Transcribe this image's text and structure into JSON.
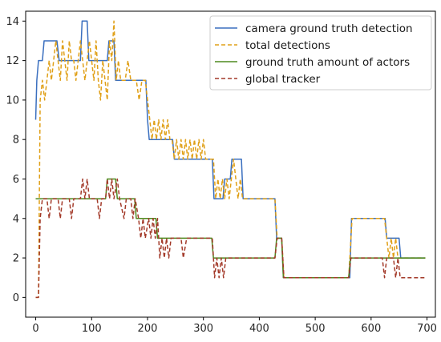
{
  "chart_data": {
    "type": "line",
    "title": "",
    "xlabel": "",
    "ylabel": "",
    "xlim": [
      -18,
      715
    ],
    "ylim": [
      -1,
      14.5
    ],
    "x_ticks": [
      0,
      100,
      200,
      300,
      400,
      500,
      600,
      700
    ],
    "y_ticks": [
      0,
      2,
      4,
      6,
      8,
      10,
      12,
      14
    ],
    "grid": false,
    "legend_position": "upper right",
    "series": [
      {
        "name": "camera ground truth detection",
        "color": "#3a6fbf",
        "style": "solid",
        "points": [
          [
            0,
            9
          ],
          [
            2,
            11
          ],
          [
            5,
            12
          ],
          [
            12,
            12
          ],
          [
            15,
            13
          ],
          [
            38,
            13
          ],
          [
            42,
            12
          ],
          [
            80,
            12
          ],
          [
            83,
            14
          ],
          [
            92,
            14
          ],
          [
            95,
            12
          ],
          [
            128,
            12
          ],
          [
            131,
            13
          ],
          [
            140,
            13
          ],
          [
            143,
            11
          ],
          [
            197,
            11
          ],
          [
            200,
            9
          ],
          [
            203,
            8
          ],
          [
            220,
            8
          ],
          [
            223,
            8
          ],
          [
            245,
            8
          ],
          [
            248,
            7
          ],
          [
            316,
            7
          ],
          [
            319,
            5
          ],
          [
            335,
            5
          ],
          [
            338,
            6
          ],
          [
            348,
            6
          ],
          [
            351,
            7
          ],
          [
            368,
            7
          ],
          [
            371,
            5
          ],
          [
            428,
            5
          ],
          [
            431,
            3
          ],
          [
            440,
            3
          ],
          [
            443,
            1
          ],
          [
            562,
            1
          ],
          [
            565,
            4
          ],
          [
            625,
            4
          ],
          [
            628,
            3
          ],
          [
            650,
            3
          ],
          [
            653,
            2
          ],
          [
            697,
            2
          ]
        ]
      },
      {
        "name": "total detections",
        "color": "#e0a018",
        "style": "dashed",
        "points": [
          [
            0,
            0
          ],
          [
            5,
            0
          ],
          [
            8,
            10
          ],
          [
            12,
            11
          ],
          [
            16,
            10
          ],
          [
            20,
            11
          ],
          [
            24,
            12
          ],
          [
            28,
            11
          ],
          [
            32,
            12
          ],
          [
            36,
            13
          ],
          [
            40,
            12
          ],
          [
            44,
            11
          ],
          [
            48,
            13
          ],
          [
            52,
            12
          ],
          [
            56,
            11
          ],
          [
            60,
            13
          ],
          [
            64,
            12
          ],
          [
            68,
            12
          ],
          [
            72,
            11
          ],
          [
            76,
            12
          ],
          [
            80,
            13
          ],
          [
            84,
            12
          ],
          [
            88,
            11
          ],
          [
            92,
            12
          ],
          [
            96,
            13
          ],
          [
            100,
            12
          ],
          [
            104,
            11
          ],
          [
            108,
            13
          ],
          [
            112,
            11
          ],
          [
            116,
            10
          ],
          [
            120,
            12
          ],
          [
            124,
            11
          ],
          [
            128,
            10
          ],
          [
            132,
            13
          ],
          [
            136,
            12
          ],
          [
            140,
            14
          ],
          [
            144,
            11
          ],
          [
            148,
            12
          ],
          [
            152,
            11
          ],
          [
            160,
            11
          ],
          [
            165,
            12
          ],
          [
            170,
            11
          ],
          [
            180,
            11
          ],
          [
            185,
            10
          ],
          [
            190,
            11
          ],
          [
            196,
            11
          ],
          [
            200,
            10
          ],
          [
            204,
            9
          ],
          [
            208,
            8
          ],
          [
            212,
            9
          ],
          [
            216,
            8
          ],
          [
            220,
            9
          ],
          [
            224,
            8
          ],
          [
            228,
            9
          ],
          [
            232,
            8
          ],
          [
            236,
            9
          ],
          [
            240,
            8
          ],
          [
            244,
            8
          ],
          [
            248,
            7
          ],
          [
            252,
            8
          ],
          [
            256,
            7
          ],
          [
            260,
            8
          ],
          [
            264,
            7
          ],
          [
            268,
            8
          ],
          [
            272,
            7
          ],
          [
            276,
            8
          ],
          [
            280,
            7
          ],
          [
            284,
            8
          ],
          [
            288,
            7
          ],
          [
            292,
            8
          ],
          [
            296,
            7
          ],
          [
            300,
            8
          ],
          [
            304,
            7
          ],
          [
            308,
            7
          ],
          [
            312,
            7
          ],
          [
            318,
            7
          ],
          [
            322,
            5
          ],
          [
            326,
            6
          ],
          [
            330,
            5
          ],
          [
            334,
            6
          ],
          [
            338,
            5
          ],
          [
            342,
            6
          ],
          [
            346,
            5
          ],
          [
            350,
            6
          ],
          [
            354,
            7
          ],
          [
            358,
            6
          ],
          [
            362,
            5
          ],
          [
            366,
            6
          ],
          [
            370,
            5
          ],
          [
            380,
            5
          ],
          [
            390,
            5
          ],
          [
            400,
            5
          ],
          [
            410,
            5
          ],
          [
            420,
            5
          ],
          [
            428,
            5
          ],
          [
            432,
            3
          ],
          [
            440,
            3
          ],
          [
            444,
            1
          ],
          [
            560,
            1
          ],
          [
            566,
            4
          ],
          [
            624,
            4
          ],
          [
            628,
            3
          ],
          [
            632,
            2
          ],
          [
            636,
            3
          ],
          [
            640,
            2
          ],
          [
            644,
            3
          ],
          [
            648,
            2
          ],
          [
            652,
            2
          ],
          [
            697,
            2
          ]
        ]
      },
      {
        "name": "ground truth amount of actors",
        "color": "#4f8a1e",
        "style": "solid",
        "points": [
          [
            0,
            5
          ],
          [
            125,
            5
          ],
          [
            128,
            6
          ],
          [
            143,
            6
          ],
          [
            146,
            5
          ],
          [
            177,
            5
          ],
          [
            180,
            4
          ],
          [
            215,
            4
          ],
          [
            218,
            3
          ],
          [
            315,
            3
          ],
          [
            318,
            2
          ],
          [
            428,
            2
          ],
          [
            431,
            3
          ],
          [
            440,
            3
          ],
          [
            443,
            1
          ],
          [
            560,
            1
          ],
          [
            563,
            2
          ],
          [
            697,
            2
          ]
        ]
      },
      {
        "name": "global tracker",
        "color": "#a33a2a",
        "style": "dashed",
        "points": [
          [
            0,
            0
          ],
          [
            5,
            0
          ],
          [
            8,
            4
          ],
          [
            12,
            5
          ],
          [
            20,
            5
          ],
          [
            24,
            4
          ],
          [
            28,
            5
          ],
          [
            40,
            5
          ],
          [
            44,
            4
          ],
          [
            48,
            5
          ],
          [
            60,
            5
          ],
          [
            64,
            4
          ],
          [
            68,
            5
          ],
          [
            80,
            5
          ],
          [
            84,
            6
          ],
          [
            88,
            5
          ],
          [
            92,
            6
          ],
          [
            96,
            5
          ],
          [
            110,
            5
          ],
          [
            114,
            4
          ],
          [
            118,
            5
          ],
          [
            125,
            5
          ],
          [
            128,
            6
          ],
          [
            132,
            5
          ],
          [
            136,
            6
          ],
          [
            140,
            5
          ],
          [
            146,
            6
          ],
          [
            150,
            5
          ],
          [
            158,
            4
          ],
          [
            162,
            5
          ],
          [
            170,
            5
          ],
          [
            174,
            4
          ],
          [
            178,
            5
          ],
          [
            184,
            4
          ],
          [
            188,
            3
          ],
          [
            192,
            4
          ],
          [
            196,
            3
          ],
          [
            202,
            4
          ],
          [
            206,
            3
          ],
          [
            210,
            4
          ],
          [
            214,
            3
          ],
          [
            218,
            4
          ],
          [
            222,
            2
          ],
          [
            226,
            3
          ],
          [
            230,
            2
          ],
          [
            234,
            3
          ],
          [
            238,
            2
          ],
          [
            242,
            3
          ],
          [
            246,
            3
          ],
          [
            252,
            3
          ],
          [
            260,
            3
          ],
          [
            264,
            2
          ],
          [
            270,
            3
          ],
          [
            280,
            3
          ],
          [
            300,
            3
          ],
          [
            316,
            3
          ],
          [
            320,
            1
          ],
          [
            324,
            2
          ],
          [
            328,
            1
          ],
          [
            332,
            2
          ],
          [
            336,
            1
          ],
          [
            340,
            2
          ],
          [
            350,
            2
          ],
          [
            360,
            2
          ],
          [
            380,
            2
          ],
          [
            400,
            2
          ],
          [
            420,
            2
          ],
          [
            428,
            2
          ],
          [
            432,
            3
          ],
          [
            440,
            3
          ],
          [
            444,
            1
          ],
          [
            560,
            1
          ],
          [
            564,
            2
          ],
          [
            620,
            2
          ],
          [
            624,
            1
          ],
          [
            628,
            2
          ],
          [
            640,
            2
          ],
          [
            644,
            1
          ],
          [
            648,
            2
          ],
          [
            652,
            1
          ],
          [
            697,
            1
          ]
        ]
      }
    ]
  }
}
